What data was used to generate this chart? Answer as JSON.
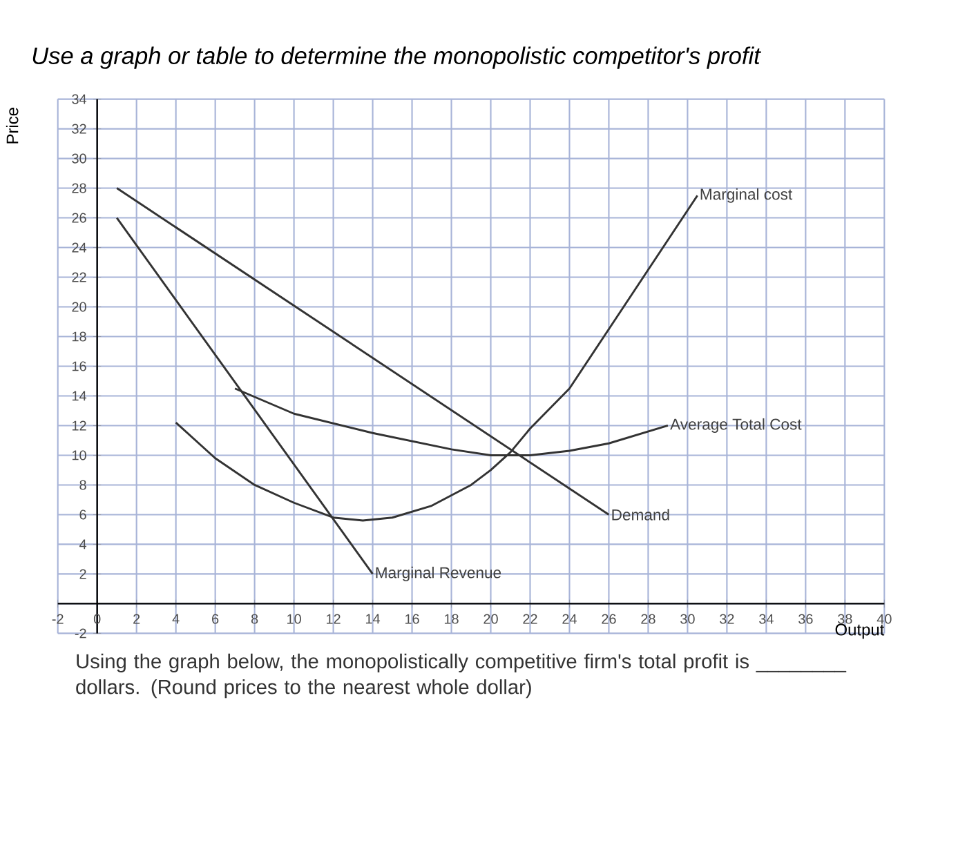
{
  "chart_data": {
    "type": "line",
    "title": "*Use a graph or table to determine the monopolistic competitor's profit*",
    "xlabel": "Output",
    "ylabel": "Price",
    "xlim": [
      -2,
      40
    ],
    "ylim": [
      -2,
      34
    ],
    "xticks": [
      -2,
      0,
      2,
      4,
      6,
      8,
      10,
      12,
      14,
      16,
      18,
      20,
      22,
      24,
      26,
      28,
      30,
      32,
      34,
      36,
      38,
      40
    ],
    "yticks": [
      -2,
      {
        "value": 0,
        "label": null
      },
      2,
      4,
      6,
      8,
      10,
      12,
      14,
      16,
      18,
      20,
      22,
      24,
      26,
      28,
      30,
      32,
      34
    ],
    "grid": true,
    "marker": "none",
    "line_style": "solid",
    "legend": false,
    "series": [
      {
        "name": "Demand",
        "color": "#333333",
        "x": [
          1,
          26
        ],
        "values": [
          28,
          6
        ]
      },
      {
        "name": "Marginal Revenue",
        "color": "#333333",
        "x": [
          1,
          14
        ],
        "values": [
          26,
          2
        ]
      },
      {
        "name": "Average Total Cost",
        "color": "#333333",
        "x": [
          7,
          10,
          14,
          18,
          20,
          22,
          24,
          26,
          29
        ],
        "values": [
          14.5,
          12.8,
          11.5,
          10.4,
          10,
          10,
          10.3,
          10.8,
          12
        ]
      },
      {
        "name": "Marginal cost",
        "color": "#333333",
        "x": [
          4,
          6,
          8,
          10,
          12,
          13.5,
          15,
          17,
          19,
          20,
          21,
          22,
          24,
          26,
          28,
          30.5
        ],
        "values": [
          12.2,
          9.8,
          8,
          6.8,
          5.8,
          5.6,
          5.8,
          6.6,
          8,
          9,
          10.2,
          11.8,
          14.5,
          18.5,
          22.5,
          27.5
        ]
      }
    ],
    "annotations": [
      "Using the graph below, the monopolistically competitive firm's total profit is ________ dollars. (Round prices to the nearest whole dollar)"
    ]
  }
}
